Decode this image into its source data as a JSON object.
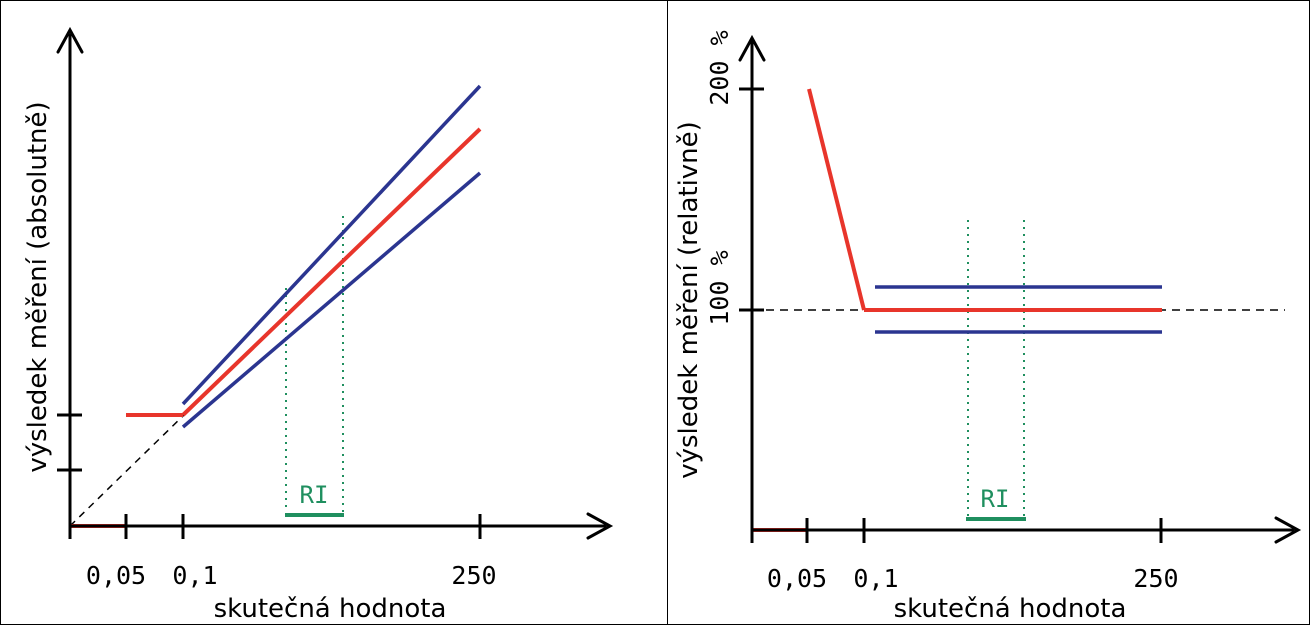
{
  "colors": {
    "red_line": "#e8352b",
    "blue_line": "#2b3590",
    "ri_green": "#1f8f5f",
    "axis": "#000000"
  },
  "left_panel": {
    "y_label": "výsledek měření (absolutně)",
    "x_label": "skutečná hodnota",
    "x_ticks": [
      "0,05",
      "0,1",
      "250"
    ],
    "ri_label": "RI"
  },
  "right_panel": {
    "y_label": "výsledek měření (relativně)",
    "x_label": "skutečná hodnota",
    "x_ticks": [
      "0,05",
      "0,1",
      "250"
    ],
    "y_ticks": [
      "100 %",
      "200 %"
    ],
    "ri_label": "RI"
  }
}
